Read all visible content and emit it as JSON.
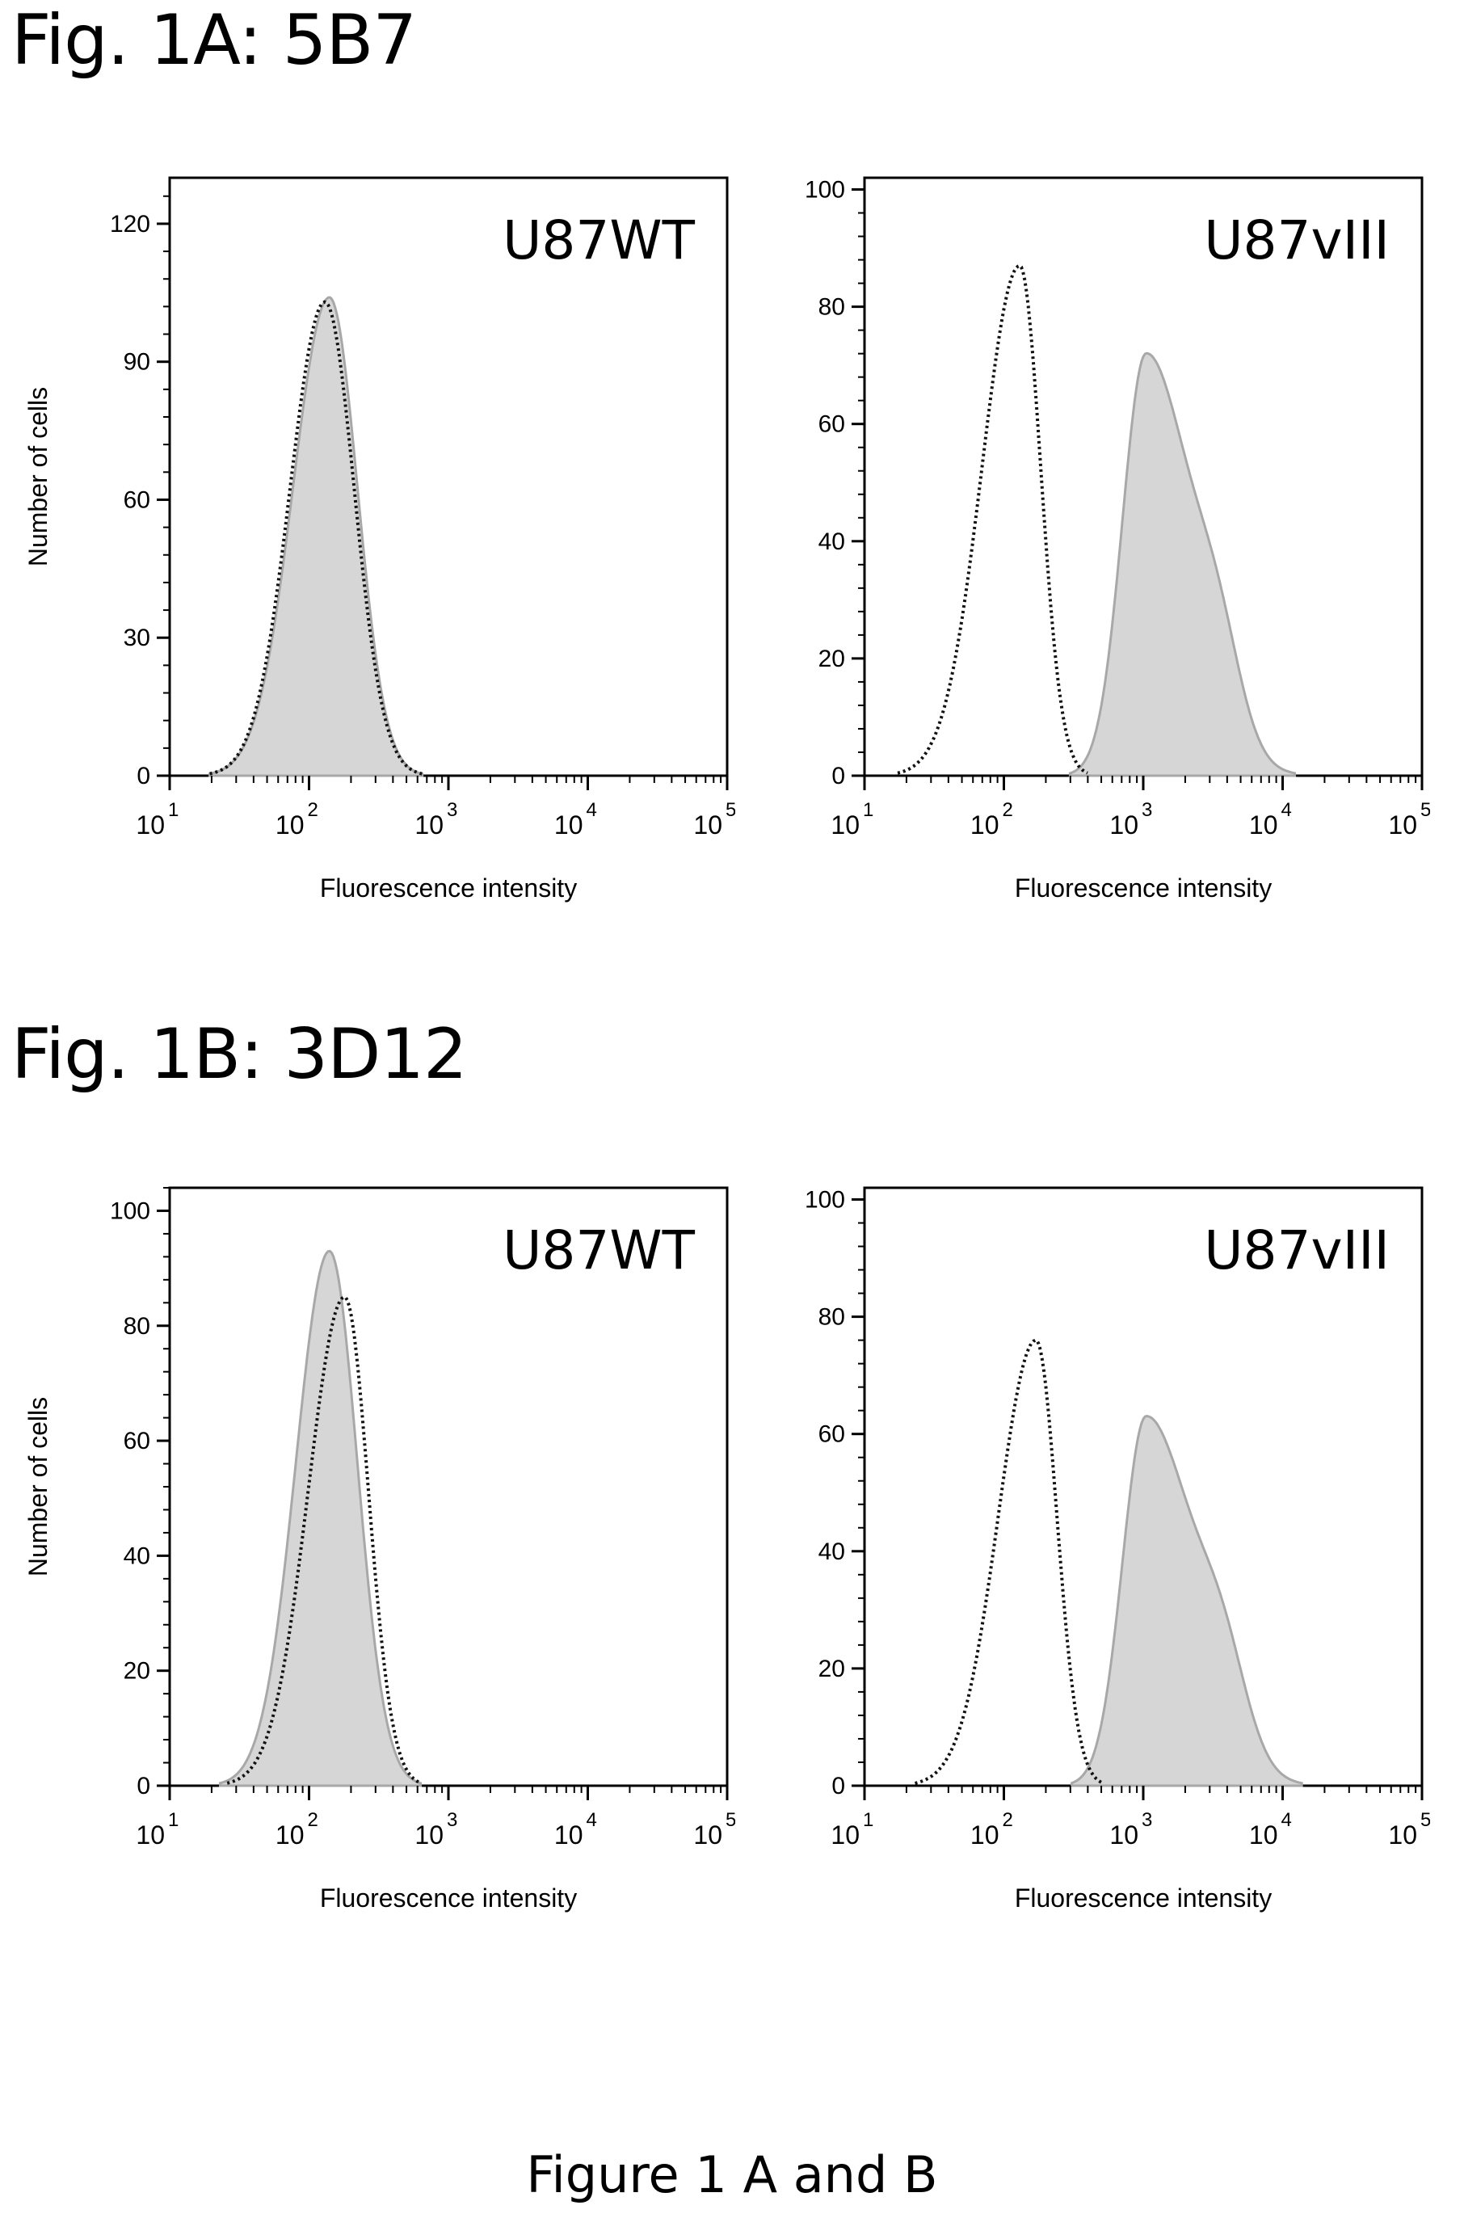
{
  "headings": {
    "fig_a": "Fig. 1A: 5B7",
    "fig_b": "Fig. 1B: 3D12"
  },
  "caption": "Figure 1 A and B",
  "colors": {
    "filled_histogram": "#d6d6d6",
    "filled_outline": "#a8a8a8",
    "dotted_histogram": "#111111",
    "axis": "#000000"
  },
  "chart_data": [
    {
      "type": "area",
      "panel": "1A",
      "label": "U87WT",
      "xlabel": "Fluorescence intensity",
      "ylabel": "Number of cells",
      "xscale": "log",
      "xlim": [
        10,
        100000
      ],
      "x_ticks": [
        "10^1",
        "10^2",
        "10^3",
        "10^4",
        "10^5"
      ],
      "ylim": [
        0,
        130
      ],
      "y_ticks": [
        0,
        30,
        60,
        90,
        120
      ],
      "grid": false,
      "series": [
        {
          "style": "filled",
          "peak_x": 140,
          "peak_y": 104,
          "sigma_left": 0.26,
          "sigma_right": 0.2
        },
        {
          "style": "dotted",
          "peak_x": 130,
          "peak_y": 103,
          "sigma_left": 0.25,
          "sigma_right": 0.21
        }
      ]
    },
    {
      "type": "area",
      "panel": "1A",
      "label": "U87vIII",
      "xlabel": "Fluorescence intensity",
      "ylabel": "",
      "xscale": "log",
      "xlim": [
        10,
        100000
      ],
      "x_ticks": [
        "10^1",
        "10^2",
        "10^3",
        "10^4",
        "10^5"
      ],
      "ylim": [
        0,
        102
      ],
      "y_ticks": [
        0,
        20,
        40,
        60,
        80,
        100
      ],
      "grid": false,
      "series": [
        {
          "style": "dotted",
          "peak_x": 130,
          "peak_y": 87,
          "sigma_left": 0.27,
          "sigma_right": 0.15
        },
        {
          "style": "filled",
          "peak_x": 1050,
          "peak_y": 72,
          "sigma_left": 0.17,
          "sigma_right": 0.33,
          "shoulder_x": 3500,
          "shoulder_y": 13,
          "shoulder_sigma": 0.16
        }
      ]
    },
    {
      "type": "area",
      "panel": "1B",
      "label": "U87WT",
      "xlabel": "Fluorescence intensity",
      "ylabel": "Number of cells",
      "xscale": "log",
      "xlim": [
        10,
        100000
      ],
      "x_ticks": [
        "10^1",
        "10^2",
        "10^3",
        "10^4",
        "10^5"
      ],
      "ylim": [
        0,
        104
      ],
      "y_ticks": [
        0,
        20,
        40,
        60,
        80,
        100
      ],
      "grid": false,
      "series": [
        {
          "style": "filled",
          "peak_x": 140,
          "peak_y": 93,
          "sigma_left": 0.24,
          "sigma_right": 0.2
        },
        {
          "style": "dotted",
          "peak_x": 180,
          "peak_y": 85,
          "sigma_left": 0.26,
          "sigma_right": 0.17
        }
      ]
    },
    {
      "type": "area",
      "panel": "1B",
      "label": "U87vIII",
      "xlabel": "Fluorescence intensity",
      "ylabel": "",
      "xscale": "log",
      "xlim": [
        10,
        100000
      ],
      "x_ticks": [
        "10^1",
        "10^2",
        "10^3",
        "10^4",
        "10^5"
      ],
      "ylim": [
        0,
        102
      ],
      "y_ticks": [
        0,
        20,
        40,
        60,
        80,
        100
      ],
      "grid": false,
      "series": [
        {
          "style": "dotted",
          "peak_x": 170,
          "peak_y": 76,
          "sigma_left": 0.27,
          "sigma_right": 0.15
        },
        {
          "style": "filled",
          "peak_x": 1050,
          "peak_y": 63,
          "sigma_left": 0.17,
          "sigma_right": 0.35,
          "shoulder_x": 3800,
          "shoulder_y": 13,
          "shoulder_sigma": 0.17
        }
      ]
    }
  ]
}
